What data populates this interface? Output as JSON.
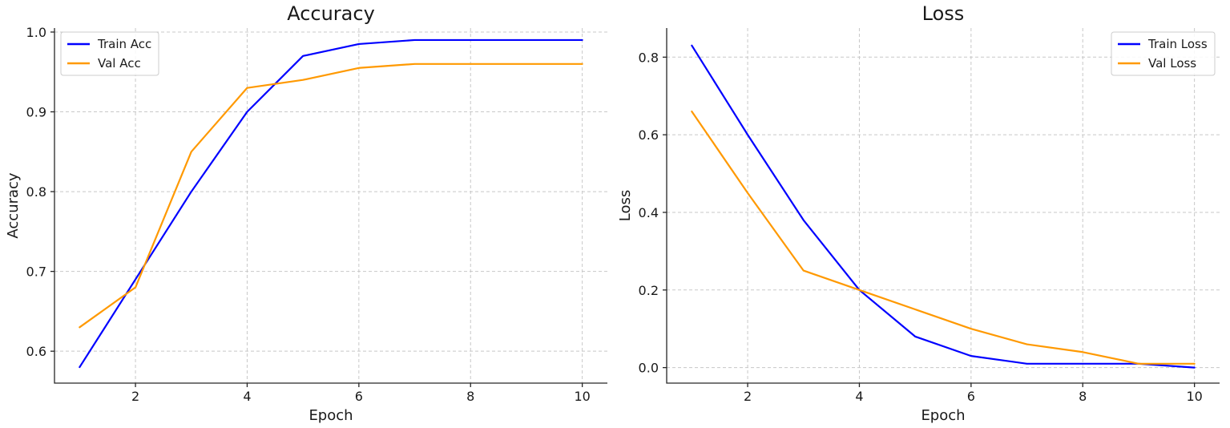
{
  "chart_data": [
    {
      "type": "line",
      "title": "Accuracy",
      "xlabel": "Epoch",
      "ylabel": "Accuracy",
      "x": [
        1,
        2,
        3,
        4,
        5,
        6,
        7,
        8,
        9,
        10
      ],
      "xlim": [
        0.55,
        10.45
      ],
      "ylim": [
        0.56,
        1.005
      ],
      "xticks": [
        2,
        4,
        6,
        8,
        10
      ],
      "xtick_labels": [
        "2",
        "4",
        "6",
        "8",
        "10"
      ],
      "yticks": [
        0.6,
        0.7,
        0.8,
        0.9,
        1.0
      ],
      "ytick_labels": [
        "0.6",
        "0.7",
        "0.8",
        "0.9",
        "1.0"
      ],
      "grid": true,
      "legend_position": "top-left",
      "series": [
        {
          "name": "Train Acc",
          "color": "#0000ff",
          "values": [
            0.58,
            0.69,
            0.8,
            0.9,
            0.97,
            0.985,
            0.99,
            0.99,
            0.99,
            0.99
          ]
        },
        {
          "name": "Val Acc",
          "color": "#ff9900",
          "values": [
            0.63,
            0.68,
            0.85,
            0.93,
            0.94,
            0.955,
            0.96,
            0.96,
            0.96,
            0.96
          ]
        }
      ]
    },
    {
      "type": "line",
      "title": "Loss",
      "xlabel": "Epoch",
      "ylabel": "Loss",
      "x": [
        1,
        2,
        3,
        4,
        5,
        6,
        7,
        8,
        9,
        10
      ],
      "xlim": [
        0.55,
        10.45
      ],
      "ylim": [
        -0.04,
        0.875
      ],
      "xticks": [
        2,
        4,
        6,
        8,
        10
      ],
      "xtick_labels": [
        "2",
        "4",
        "6",
        "8",
        "10"
      ],
      "yticks": [
        0.0,
        0.2,
        0.4,
        0.6,
        0.8
      ],
      "ytick_labels": [
        "0.0",
        "0.2",
        "0.4",
        "0.6",
        "0.8"
      ],
      "grid": true,
      "legend_position": "top-right",
      "series": [
        {
          "name": "Train Loss",
          "color": "#0000ff",
          "values": [
            0.83,
            0.6,
            0.38,
            0.2,
            0.08,
            0.03,
            0.01,
            0.01,
            0.01,
            0.0
          ]
        },
        {
          "name": "Val Loss",
          "color": "#ff9900",
          "values": [
            0.66,
            0.45,
            0.25,
            0.2,
            0.15,
            0.1,
            0.06,
            0.04,
            0.01,
            0.01
          ]
        }
      ]
    }
  ]
}
